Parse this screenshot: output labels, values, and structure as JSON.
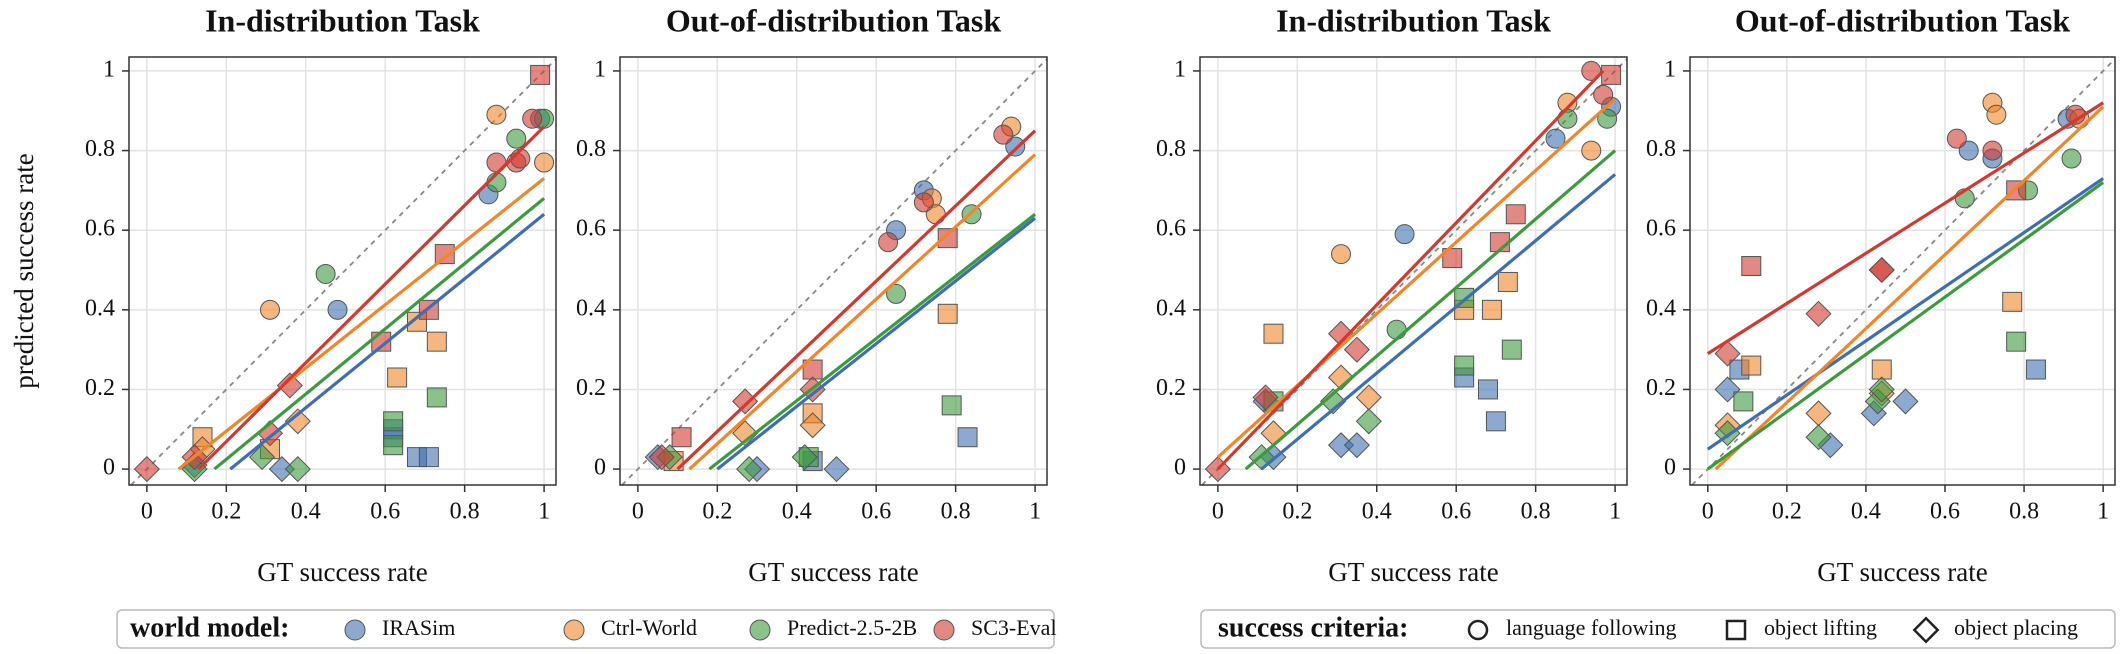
{
  "chart_data": [
    {
      "type": "scatter",
      "title": "In-distribution Task",
      "xlabel": "GT success rate",
      "ylabel": "predicted success rate",
      "xlim": [
        -0.045,
        1.03
      ],
      "ylim": [
        -0.04,
        1.035
      ],
      "xticks": [
        0,
        0.2,
        0.4,
        0.6,
        0.8,
        1
      ],
      "yticks": [
        0,
        0.2,
        0.4,
        0.6,
        0.8,
        1
      ],
      "grid": true,
      "series": [
        {
          "x": [
            0.86,
            0.48,
            0.99,
            0.62,
            0.62,
            0.68,
            0.71,
            0.12,
            0.34
          ],
          "y": [
            0.69,
            0.4,
            0.88,
            0.08,
            0.1,
            0.03,
            0.03,
            0.01,
            0.0
          ],
          "shape": [
            "circle",
            "circle",
            "circle",
            "square",
            "square",
            "square",
            "square",
            "diamond",
            "diamond"
          ],
          "fit": {
            "x": [
              0.21,
              1
            ],
            "y": [
              0,
              0.64
            ]
          }
        },
        {
          "x": [
            0.31,
            0.88,
            1.0,
            0.14,
            0.63,
            0.68,
            0.73,
            0.31,
            0.14,
            0.38
          ],
          "y": [
            0.4,
            0.89,
            0.77,
            0.08,
            0.23,
            0.37,
            0.32,
            0.05,
            0.05,
            0.12
          ],
          "shape": [
            "circle",
            "circle",
            "circle",
            "square",
            "square",
            "square",
            "square",
            "square",
            "diamond",
            "diamond"
          ],
          "fit": {
            "x": [
              0.08,
              1
            ],
            "y": [
              0,
              0.73
            ]
          }
        },
        {
          "x": [
            0.45,
            0.88,
            0.93,
            1.0,
            0.62,
            0.62,
            0.73,
            0.29,
            0.38,
            0.12
          ],
          "y": [
            0.49,
            0.72,
            0.83,
            0.88,
            0.12,
            0.06,
            0.18,
            0.03,
            0.0,
            0.0
          ],
          "shape": [
            "circle",
            "circle",
            "circle",
            "circle",
            "square",
            "square",
            "square",
            "diamond",
            "diamond",
            "diamond"
          ],
          "fit": {
            "x": [
              0.17,
              1
            ],
            "y": [
              0,
              0.68
            ]
          }
        },
        {
          "x": [
            0.88,
            0.93,
            0.97,
            0.94,
            0.59,
            0.71,
            0.75,
            0.99,
            0.0,
            0.36,
            0.31,
            0.12
          ],
          "y": [
            0.77,
            0.77,
            0.88,
            0.78,
            0.32,
            0.4,
            0.54,
            0.99,
            0.0,
            0.21,
            0.09,
            0.03
          ],
          "shape": [
            "circle",
            "circle",
            "circle",
            "circle",
            "square",
            "square",
            "square",
            "square",
            "diamond",
            "diamond",
            "diamond",
            "diamond"
          ],
          "fit": {
            "x": [
              0.13,
              1
            ],
            "y": [
              0,
              0.86
            ]
          }
        }
      ]
    },
    {
      "type": "scatter",
      "title": "Out-of-distribution Task",
      "xlabel": "GT success rate",
      "xlim": [
        -0.045,
        1.03
      ],
      "ylim": [
        -0.04,
        1.035
      ],
      "xticks": [
        0,
        0.2,
        0.4,
        0.6,
        0.8,
        1
      ],
      "yticks": [
        0,
        0.2,
        0.4,
        0.6,
        0.8,
        1
      ],
      "grid": true,
      "series": [
        {
          "x": [
            0.65,
            0.72,
            0.95,
            0.44,
            0.83,
            0.05,
            0.3,
            0.5
          ],
          "y": [
            0.6,
            0.7,
            0.81,
            0.02,
            0.08,
            0.03,
            0.0,
            0.0
          ],
          "shape": [
            "circle",
            "circle",
            "circle",
            "square",
            "square",
            "diamond",
            "diamond",
            "diamond"
          ],
          "fit": {
            "x": [
              0.2,
              1
            ],
            "y": [
              0,
              0.63
            ]
          }
        },
        {
          "x": [
            0.74,
            0.94,
            0.75,
            0.44,
            0.78,
            0.09,
            0.44,
            0.27
          ],
          "y": [
            0.68,
            0.86,
            0.64,
            0.14,
            0.39,
            0.02,
            0.11,
            0.09
          ],
          "shape": [
            "circle",
            "circle",
            "circle",
            "square",
            "square",
            "square",
            "diamond",
            "diamond"
          ],
          "fit": {
            "x": [
              0.13,
              1
            ],
            "y": [
              0,
              0.79
            ]
          }
        },
        {
          "x": [
            0.65,
            0.84,
            0.79,
            0.43,
            0.28,
            0.08,
            0.42
          ],
          "y": [
            0.44,
            0.64,
            0.16,
            0.03,
            0.0,
            0.03,
            0.03
          ],
          "shape": [
            "circle",
            "circle",
            "square",
            "square",
            "diamond",
            "diamond",
            "diamond"
          ],
          "fit": {
            "x": [
              0.18,
              1
            ],
            "y": [
              0,
              0.64
            ]
          }
        },
        {
          "x": [
            0.63,
            0.72,
            0.92,
            0.44,
            0.78,
            0.11,
            0.27,
            0.44,
            0.06
          ],
          "y": [
            0.57,
            0.67,
            0.84,
            0.25,
            0.58,
            0.08,
            0.17,
            0.2,
            0.03
          ],
          "shape": [
            "circle",
            "circle",
            "circle",
            "square",
            "square",
            "square",
            "diamond",
            "diamond",
            "diamond"
          ],
          "fit": {
            "x": [
              0.1,
              1
            ],
            "y": [
              0,
              0.85
            ]
          }
        }
      ]
    },
    {
      "type": "scatter",
      "title": "In-distribution Task",
      "xlabel": "GT success rate",
      "xlim": [
        -0.045,
        1.03
      ],
      "ylim": [
        -0.04,
        1.035
      ],
      "xticks": [
        0,
        0.2,
        0.4,
        0.6,
        0.8,
        1
      ],
      "yticks": [
        0,
        0.2,
        0.4,
        0.6,
        0.8,
        1
      ],
      "grid": true,
      "series": [
        {
          "x": [
            0.47,
            0.85,
            0.99,
            0.62,
            0.68,
            0.7,
            0.12,
            0.31,
            0.35,
            0.14
          ],
          "y": [
            0.59,
            0.83,
            0.91,
            0.23,
            0.2,
            0.12,
            0.17,
            0.06,
            0.06,
            0.03
          ],
          "shape": [
            "circle",
            "circle",
            "circle",
            "square",
            "square",
            "square",
            "diamond",
            "diamond",
            "diamond",
            "diamond"
          ],
          "fit": {
            "x": [
              0.11,
              1
            ],
            "y": [
              0,
              0.74
            ]
          }
        },
        {
          "x": [
            0.31,
            0.88,
            0.94,
            0.14,
            0.62,
            0.69,
            0.73,
            0.31,
            0.38,
            0.14
          ],
          "y": [
            0.54,
            0.92,
            0.8,
            0.34,
            0.4,
            0.4,
            0.47,
            0.23,
            0.18,
            0.09
          ],
          "shape": [
            "circle",
            "circle",
            "circle",
            "square",
            "square",
            "square",
            "square",
            "diamond",
            "diamond",
            "diamond"
          ],
          "fit": {
            "x": [
              0,
              1
            ],
            "y": [
              0.03,
              0.93
            ]
          }
        },
        {
          "x": [
            0.45,
            0.88,
            0.98,
            0.62,
            0.62,
            0.74,
            0.14,
            0.29,
            0.38,
            0.11
          ],
          "y": [
            0.35,
            0.88,
            0.88,
            0.26,
            0.43,
            0.3,
            0.17,
            0.17,
            0.12,
            0.03
          ],
          "shape": [
            "circle",
            "circle",
            "circle",
            "square",
            "square",
            "square",
            "square",
            "diamond",
            "diamond",
            "diamond"
          ],
          "fit": {
            "x": [
              0.07,
              1
            ],
            "y": [
              0,
              0.8
            ]
          }
        },
        {
          "x": [
            0.94,
            0.97,
            0.59,
            0.71,
            0.75,
            0.99,
            0.31,
            0.35,
            0.12,
            0.0
          ],
          "y": [
            1.0,
            0.94,
            0.53,
            0.57,
            0.64,
            0.99,
            0.34,
            0.3,
            0.18,
            0.0
          ],
          "shape": [
            "circle",
            "circle",
            "square",
            "square",
            "square",
            "square",
            "diamond",
            "diamond",
            "diamond",
            "diamond"
          ],
          "fit": {
            "x": [
              0,
              0.97
            ],
            "y": [
              0,
              1.0
            ]
          }
        }
      ]
    },
    {
      "type": "scatter",
      "title": "Out-of-distribution Task",
      "xlabel": "GT success rate",
      "xlim": [
        -0.045,
        1.03
      ],
      "ylim": [
        -0.04,
        1.035
      ],
      "xticks": [
        0,
        0.2,
        0.4,
        0.6,
        0.8,
        1
      ],
      "yticks": [
        0,
        0.2,
        0.4,
        0.6,
        0.8,
        1
      ],
      "grid": true,
      "series": [
        {
          "x": [
            0.66,
            0.72,
            0.91,
            0.08,
            0.83,
            0.05,
            0.42,
            0.31,
            0.5
          ],
          "y": [
            0.8,
            0.78,
            0.88,
            0.25,
            0.25,
            0.2,
            0.14,
            0.06,
            0.17
          ],
          "shape": [
            "circle",
            "circle",
            "circle",
            "square",
            "square",
            "diamond",
            "diamond",
            "diamond",
            "diamond"
          ],
          "fit": {
            "x": [
              0,
              1
            ],
            "y": [
              0.05,
              0.73
            ]
          }
        },
        {
          "x": [
            0.72,
            0.73,
            0.94,
            0.11,
            0.44,
            0.77,
            0.05,
            0.28,
            0.44
          ],
          "y": [
            0.92,
            0.89,
            0.88,
            0.26,
            0.25,
            0.42,
            0.11,
            0.14,
            0.19
          ],
          "shape": [
            "circle",
            "circle",
            "circle",
            "square",
            "square",
            "square",
            "diamond",
            "diamond",
            "diamond"
          ],
          "fit": {
            "x": [
              0.02,
              1
            ],
            "y": [
              0,
              0.91
            ]
          }
        },
        {
          "x": [
            0.65,
            0.81,
            0.92,
            0.09,
            0.78,
            0.28,
            0.43,
            0.44,
            0.05
          ],
          "y": [
            0.68,
            0.7,
            0.78,
            0.17,
            0.32,
            0.08,
            0.17,
            0.2,
            0.09
          ],
          "shape": [
            "circle",
            "circle",
            "circle",
            "square",
            "square",
            "diamond",
            "diamond",
            "diamond",
            "diamond"
          ],
          "fit": {
            "x": [
              0,
              1
            ],
            "y": [
              0,
              0.72
            ]
          }
        },
        {
          "x": [
            0.63,
            0.72,
            0.93,
            0.11,
            0.78,
            0.05,
            0.28,
            0.44,
            0.44
          ],
          "y": [
            0.83,
            0.8,
            0.89,
            0.51,
            0.7,
            0.29,
            0.39,
            0.5,
            0.5
          ],
          "shape": [
            "circle",
            "circle",
            "circle",
            "square",
            "square",
            "diamond",
            "diamond",
            "diamond",
            "diamond"
          ],
          "fit": {
            "x": [
              0,
              1
            ],
            "y": [
              0.29,
              0.92
            ]
          }
        }
      ]
    }
  ],
  "legends": {
    "world_model": {
      "title": "world model:",
      "entries": [
        {
          "name": "IRASim",
          "color": "#3f6fb0"
        },
        {
          "name": "Ctrl-World",
          "color": "#f0862c"
        },
        {
          "name": "Predict-2.5-2B",
          "color": "#3e9a3e"
        },
        {
          "name": "SC3-Eval",
          "color": "#d13a30"
        }
      ]
    },
    "success_criteria": {
      "title": "success criteria:",
      "entries": [
        {
          "name": "language following",
          "shape": "circle"
        },
        {
          "name": "object lifting",
          "shape": "square"
        },
        {
          "name": "object placing",
          "shape": "diamond"
        }
      ]
    }
  }
}
